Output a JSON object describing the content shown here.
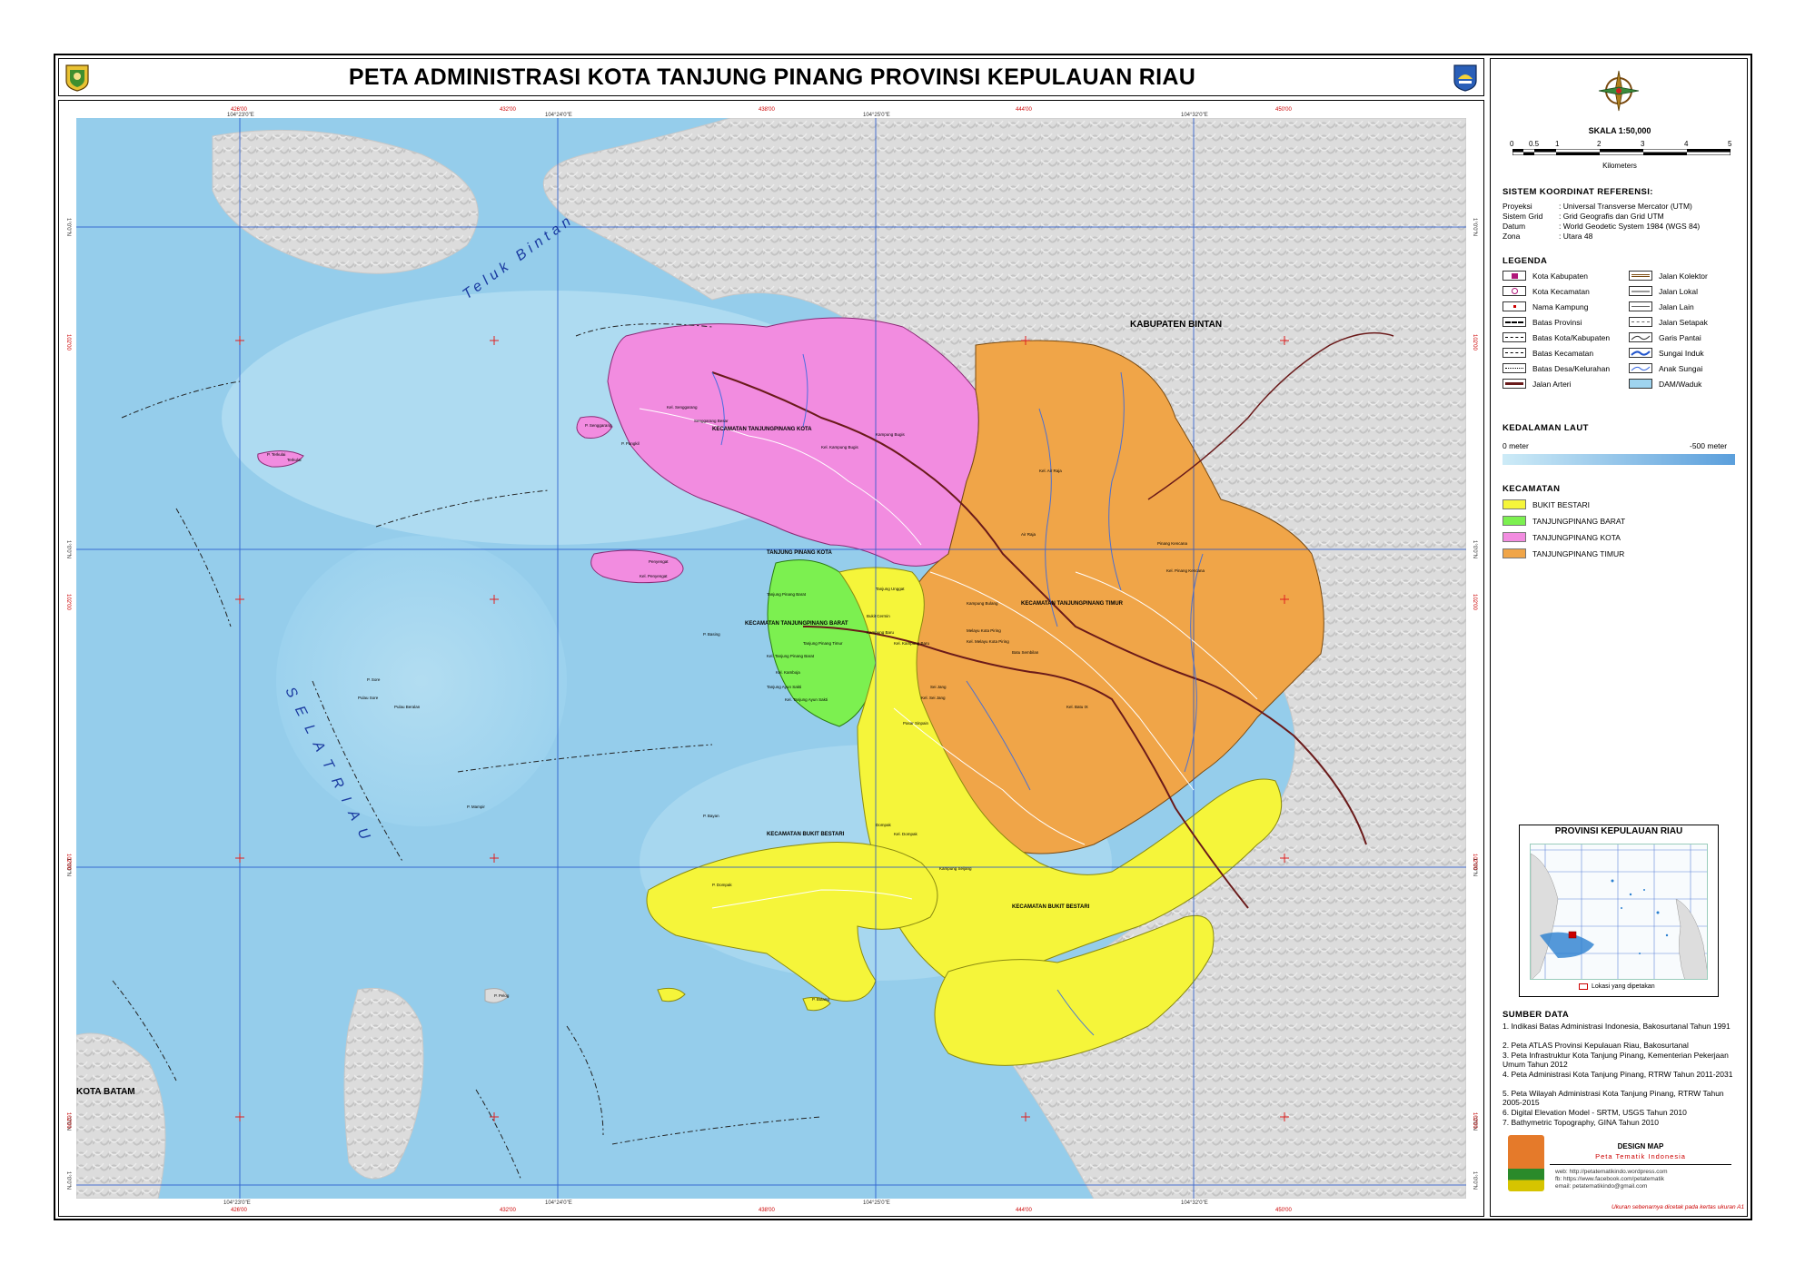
{
  "title": "PETA ADMINISTRASI KOTA TANJUNG PINANG PROVINSI KEPULAUAN RIAU",
  "scale": {
    "label": "SKALA  1:50,000",
    "ticks": [
      "0",
      "0.5",
      "1",
      "2",
      "3",
      "4",
      "5"
    ],
    "unit": "Kilometers"
  },
  "crs": {
    "heading": "SISTEM KOORDINAT REFERENSI:",
    "rows": [
      {
        "k": "Proyeksi",
        "v": ": Universal Transverse Mercator (UTM)"
      },
      {
        "k": "Sistem Grid",
        "v": ": Grid Geografis dan Grid UTM"
      },
      {
        "k": "Datum",
        "v": ": World Geodetic System 1984 (WGS 84)"
      },
      {
        "k": "Zona",
        "v": ": Utara 48"
      }
    ]
  },
  "legend": {
    "heading": "LEGENDA",
    "left": [
      "Kota Kabupaten",
      "Kota Kecamatan",
      "Nama Kampung",
      "Batas Provinsi",
      "Batas Kota/Kabupaten",
      "Batas Kecamatan",
      "Batas Desa/Kelurahan",
      "Jalan Arteri"
    ],
    "right": [
      "Jalan Kolektor",
      "Jalan Lokal",
      "Jalan Lain",
      "Jalan Setapak",
      "Garis Pantai",
      "Sungai Induk",
      "Anak Sungai",
      "DAM/Waduk"
    ]
  },
  "depth": {
    "heading": "KEDALAMAN LAUT",
    "min": "0 meter",
    "max": "-500 meter",
    "color_shallow": "#cdebf7",
    "color_deep": "#5b9fdc"
  },
  "kecamatan": {
    "heading": "KECAMATAN",
    "items": [
      {
        "name": "BUKIT BESTARI",
        "color": "#f5f53a"
      },
      {
        "name": "TANJUNGPINANG BARAT",
        "color": "#7cf050"
      },
      {
        "name": "TANJUNGPINANG KOTA",
        "color": "#f28ce0"
      },
      {
        "name": "TANJUNGPINANG TIMUR",
        "color": "#f0a548"
      }
    ]
  },
  "inset": {
    "title": "PROVINSI KEPULAUAN RIAU",
    "note": "Lokasi yang dipetakan"
  },
  "sources": {
    "heading": "SUMBER DATA",
    "items": [
      "1. Indikasi Batas Administrasi Indonesia, Bakosurtanal Tahun 1991",
      "2. Peta ATLAS Provinsi Kepulauan Riau, Bakosurtanal",
      "3. Peta Infrastruktur Kota Tanjung Pinang, Kementerian Pekerjaan Umum Tahun 2012",
      "4. Peta Administrasi Kota Tanjung Pinang, RTRW Tahun 2011-2031",
      "5. Peta Wilayah Administrasi Kota Tanjung Pinang, RTRW Tahun 2005-2015",
      "6. Digital Elevation Model - SRTM, USGS Tahun 2010",
      "7. Bathymetric Topography, GINA Tahun 2010"
    ]
  },
  "design": {
    "title": "DESIGN MAP",
    "sub": "Peta Tematik Indonesia",
    "web": [
      "web: http://petatematikindo.wordpress.com",
      "fb: https://www.facebook.com/petatematik",
      "email: petatematikindo@gmail.com"
    ],
    "note": "Ukuran sebenarnya dicetak pada kertas ukuran A1"
  },
  "map_labels": {
    "teluk": "Teluk Bintan",
    "selat": "S E L A T   R I A U",
    "kab_bintan": "KABUPATEN BINTAN",
    "kota_batam": "KOTA BATAM",
    "kec_kota": "KECAMATAN TANJUNGPINANG KOTA",
    "kec_timur": "KECAMATAN TANJUNGPINANG TIMUR",
    "kec_barat": "KECAMATAN TANJUNGPINANG BARAT",
    "kec_bestari_1": "KECAMATAN BUKIT BESTARI",
    "kec_bestari_2": "KECAMATAN BUKIT BESTARI",
    "kab_label_tp": "TANJUNG PINANG KOTA",
    "places": [
      "Kel. Senggarang",
      "Senggarang Besar",
      "Kampung Bugis",
      "Kel. Kampung Bugis",
      "Kel. Air Raja",
      "Air Raja",
      "Pinang Kencana",
      "Kel. Pinang Kencana",
      "Kampung Bulang",
      "Batu Sembilan",
      "Kel. Batu IX",
      "Tanjung Unggat",
      "Bukit Cermin",
      "Kampung Baru",
      "Tanjung Pinang Timur",
      "Sei Jang",
      "Kel. Sei Jang",
      "Pasar Sinpain",
      "Dompak",
      "Kel. Dompak",
      "Kampung Seijang",
      "Tanjung Ayun Sakti",
      "Penyengat",
      "Kel. Penyengat",
      "Kel. Tanjung Pinang Barat",
      "Kel. Kamboja",
      "Kel. Tanjung Ayun Sakti",
      "Melayu Kota Piring",
      "Kel. Melayu Kota Piring",
      "Tanjung Pinang Barat",
      "P. Basing",
      "P. Terkulai",
      "Terkulai",
      "P. Pangkil",
      "P. Sore",
      "Pulau Beralan",
      "Pulau Sore",
      "P. Mampir",
      "P. Bayan",
      "P. Senggarang",
      "Kel. Kampung Baru",
      "P. Dompak",
      "P. Bulang",
      "P. Pelog"
    ],
    "grid_top": [
      "426'00",
      "104°23'0\"E",
      "432'00",
      "104°24'0\"E",
      "438'00",
      "104°25'0\"E",
      "444'00",
      "104°32'0\"E",
      "450'00"
    ],
    "grid_bottom": [
      "104°23'0\"E",
      "426'00",
      "432'00",
      "104°24'0\"E",
      "438'00",
      "104°25'0\"E",
      "444'00",
      "104°32'0\"E",
      "450'00"
    ],
    "grid_left": [
      "1°0'0\"N",
      "102'00",
      "1°0'0\"N",
      "102'00",
      "1°0'0\"N",
      "102'00",
      "1°0'0\"N",
      "1°0'0\"N",
      "102'00"
    ],
    "grid_right": [
      "1°0'0\"N",
      "102'00",
      "1°0'0\"N",
      "102'00",
      "1°0'0\"N",
      "102'00",
      "1°0'0\"N",
      "1°0'0\"N",
      "102'00"
    ]
  }
}
